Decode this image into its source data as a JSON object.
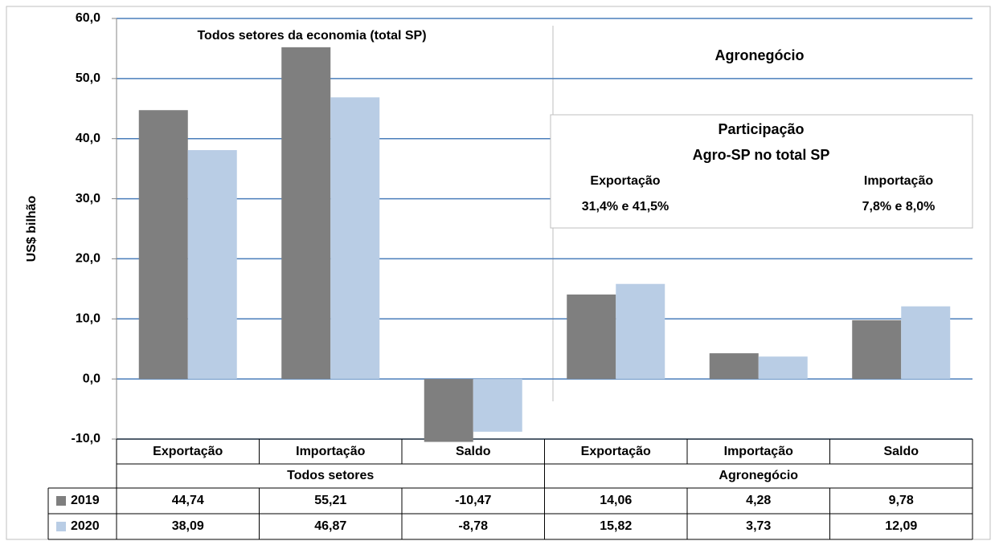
{
  "chart_data": {
    "type": "bar",
    "y_label": "US$  bilhão",
    "categories": [
      "Exportação",
      "Importação",
      "Saldo",
      "Exportação",
      "Importação",
      "Saldo"
    ],
    "group_labels": [
      "Todos setores",
      "Agronegócio"
    ],
    "series": [
      {
        "name": "2019",
        "color": "#7f7f7f",
        "values": [
          44.74,
          55.21,
          -10.47,
          14.06,
          4.28,
          9.78
        ],
        "value_labels": [
          "44,74",
          "55,21",
          "-10,47",
          "14,06",
          "4,28",
          "9,78"
        ]
      },
      {
        "name": "2020",
        "color": "#b9cde5",
        "values": [
          38.09,
          46.87,
          -8.78,
          15.82,
          3.73,
          12.09
        ],
        "value_labels": [
          "38,09",
          "46,87",
          "-8,78",
          "15,82",
          "3,73",
          "12,09"
        ]
      }
    ],
    "ylim": [
      -10,
      60
    ],
    "yticks": [
      {
        "value": -10,
        "label": "-10,0"
      },
      {
        "value": 0,
        "label": "0,0"
      },
      {
        "value": 10,
        "label": "10,0"
      },
      {
        "value": 20,
        "label": "20,0"
      },
      {
        "value": 30,
        "label": "30,0"
      },
      {
        "value": 40,
        "label": "40,0"
      },
      {
        "value": 50,
        "label": "50,0"
      },
      {
        "value": 60,
        "label": "60,0"
      }
    ],
    "grid": true,
    "annotations": {
      "left_title": "Todos setores da economia (total SP)",
      "right_title": "Agronegócio",
      "box_title_1": "Participação",
      "box_title_2": "Agro-SP no total SP",
      "box_left_head": "Exportação",
      "box_left_value": "31,4% e 41,5%",
      "box_right_head": "Importação",
      "box_right_value": "7,8% e 8,0%"
    }
  }
}
